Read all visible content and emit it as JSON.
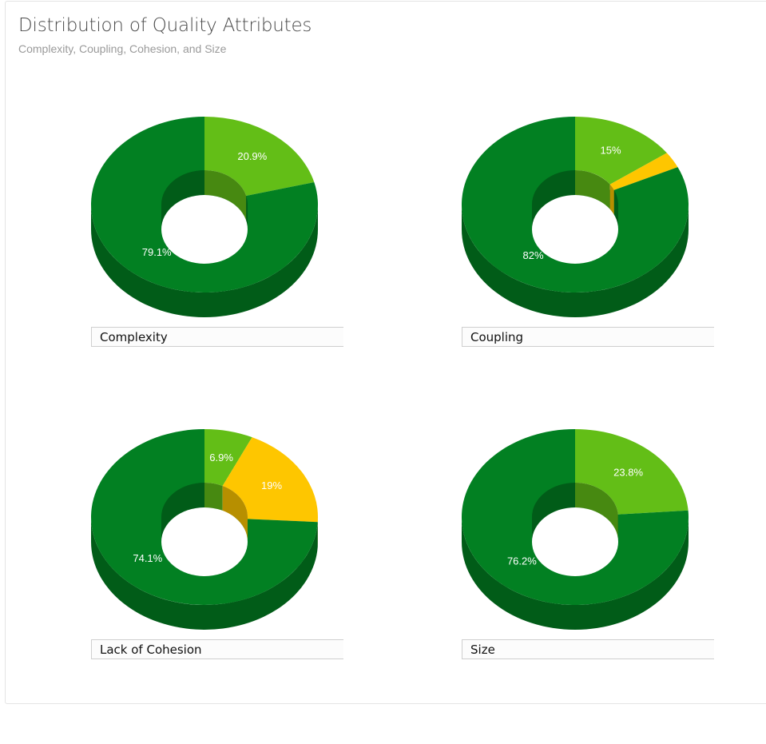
{
  "header": {
    "title": "Distribution of Quality Attributes",
    "subtitle": "Complexity, Coupling, Cohesion, and Size"
  },
  "colors": {
    "dark_green": "#028022",
    "light_green": "#63be17",
    "yellow": "#fec600"
  },
  "chart_data": [
    {
      "type": "pie",
      "style": "3d-donut",
      "label": "Complexity",
      "slices": [
        {
          "value": 20.9,
          "label": "20.9%",
          "color": "#63be17"
        },
        {
          "value": 0,
          "label": "",
          "color": "#fec600"
        },
        {
          "value": 79.1,
          "label": "79.1%",
          "color": "#028022"
        }
      ]
    },
    {
      "type": "pie",
      "style": "3d-donut",
      "label": "Coupling",
      "slices": [
        {
          "value": 15,
          "label": "15%",
          "color": "#63be17"
        },
        {
          "value": 3,
          "label": "",
          "color": "#fec600"
        },
        {
          "value": 82,
          "label": "82%",
          "color": "#028022"
        }
      ]
    },
    {
      "type": "pie",
      "style": "3d-donut",
      "label": "Lack of Cohesion",
      "slices": [
        {
          "value": 6.9,
          "label": "6.9%",
          "color": "#63be17"
        },
        {
          "value": 19,
          "label": "19%",
          "color": "#fec600"
        },
        {
          "value": 74.1,
          "label": "74.1%",
          "color": "#028022"
        }
      ]
    },
    {
      "type": "pie",
      "style": "3d-donut",
      "label": "Size",
      "slices": [
        {
          "value": 23.8,
          "label": "23.8%",
          "color": "#63be17"
        },
        {
          "value": 0,
          "label": "",
          "color": "#fec600"
        },
        {
          "value": 76.2,
          "label": "76.2%",
          "color": "#028022"
        }
      ]
    }
  ]
}
